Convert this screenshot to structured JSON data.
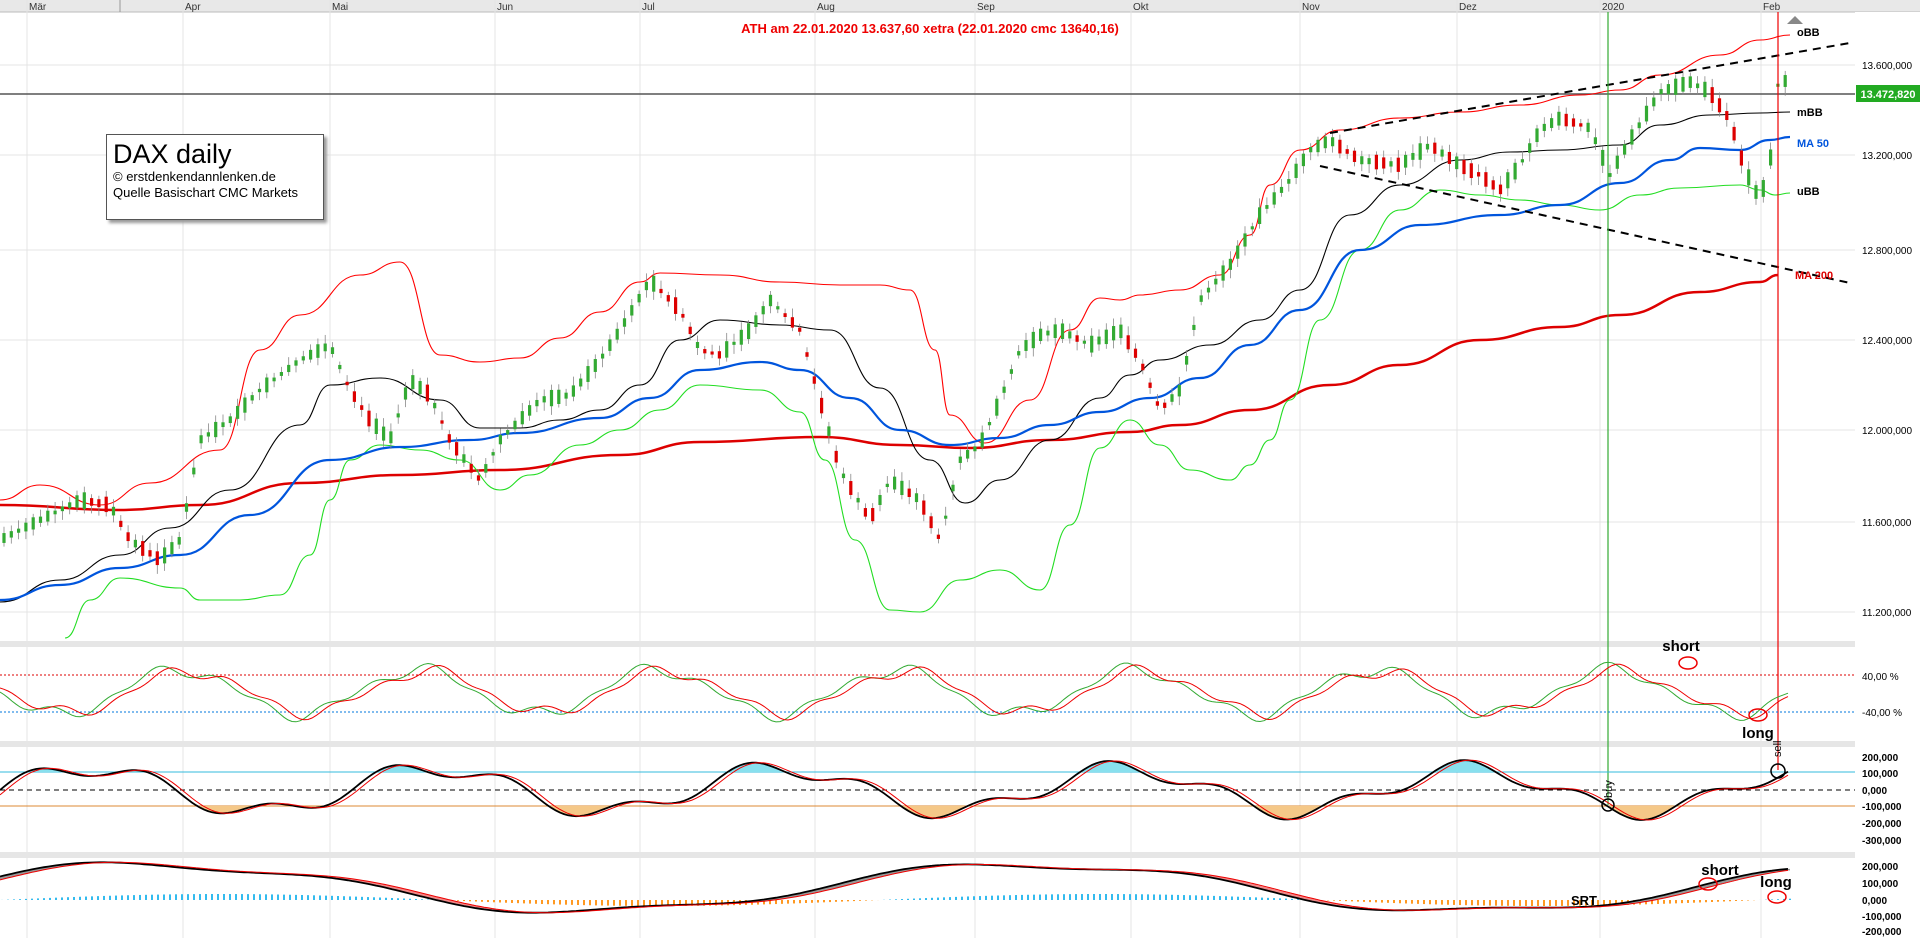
{
  "header": {
    "ath_note": "ATH am 22.01.2020   13.637,60 xetra   (22.01.2020  cmc 13640,16)"
  },
  "info_box": {
    "title": "DAX daily",
    "copyright": "© erstdenkendannlenken.de",
    "source": "Quelle Basischart CMC Markets"
  },
  "months": [
    "Mär",
    "Apr",
    "Mai",
    "Jun",
    "Jul",
    "Aug",
    "Sep",
    "Okt",
    "Nov",
    "Dez",
    "2020",
    "Feb"
  ],
  "price_axis": [
    "13.600,000",
    "13.200,000",
    "12.800,000",
    "12.400,000",
    "12.000,000",
    "11.600,000",
    "11.200,000"
  ],
  "last_price": "13.472,820",
  "indicator_labels": {
    "obb": "oBB",
    "mbb": "mBB",
    "ma50": "MA 50",
    "ubb": "uBB",
    "ma200": "MA 200"
  },
  "stoch_axis": [
    "40,00 %",
    "-40,00 %"
  ],
  "osc1_axis": [
    "200,000",
    "100,000",
    "0,000",
    "-100,000",
    "-200,000",
    "-300,000"
  ],
  "osc2_axis": [
    "200,000",
    "100,000",
    "0,000",
    "-100,000",
    "-200,000"
  ],
  "annotations": {
    "short1": "short",
    "long1": "long",
    "buy": "buy",
    "sell": "sell",
    "short2": "short",
    "long2": "long",
    "srt": "SRT"
  },
  "colors": {
    "upper_bb": "#ff0000",
    "middle_bb": "#000000",
    "lower_bb": "#22dd22",
    "ma50": "#0055dd",
    "ma200": "#dd0000",
    "candle_up": "#33aa33",
    "candle_down": "#dd0000",
    "last_price_bg": "#22aa22"
  },
  "chart_data": {
    "type": "line",
    "title": "DAX daily",
    "x": [
      "Mär",
      "Apr",
      "Mai",
      "Jun",
      "Jul",
      "Aug",
      "Sep",
      "Okt",
      "Nov",
      "Dez",
      "2020",
      "Feb"
    ],
    "ylim": [
      11000,
      13800
    ],
    "series": [
      {
        "name": "oBB",
        "values": [
          11700,
          12400,
          12480,
          12250,
          12650,
          12780,
          11950,
          12490,
          13300,
          13450,
          13600,
          13780
        ]
      },
      {
        "name": "mBB",
        "values": [
          11250,
          11950,
          12200,
          12000,
          12250,
          12350,
          11700,
          12250,
          13050,
          13250,
          13350,
          13420
        ]
      },
      {
        "name": "MA 50",
        "values": [
          11250,
          11450,
          11850,
          11980,
          12070,
          11960,
          11930,
          12050,
          12750,
          13000,
          13120,
          13270
        ]
      },
      {
        "name": "uBB",
        "values": [
          11050,
          11300,
          11800,
          11750,
          11900,
          11900,
          11200,
          11900,
          12700,
          13000,
          13030,
          13050
        ]
      },
      {
        "name": "MA 200",
        "values": [
          11650,
          11700,
          11800,
          11820,
          11900,
          11980,
          11950,
          12000,
          12230,
          12400,
          12530,
          12680
        ]
      }
    ],
    "last_value": 13472.82
  }
}
